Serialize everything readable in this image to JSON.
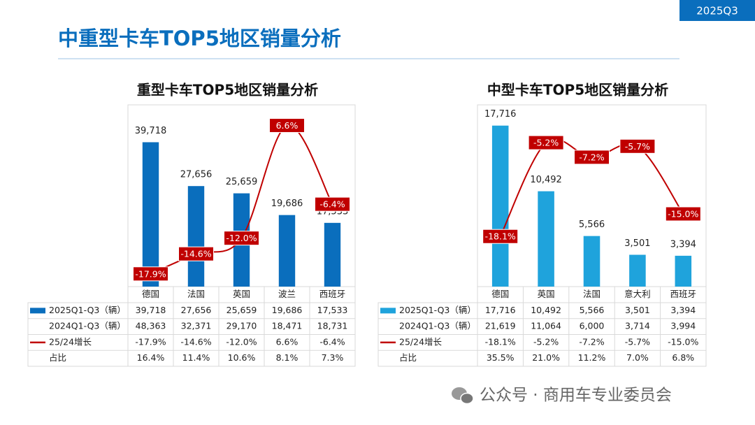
{
  "header": {
    "title": "中重型卡车TOP5地区销量分析",
    "badge": "2025Q3",
    "footer": "公众号 · 商用车专业委员会"
  },
  "chart_data": [
    {
      "type": "bar",
      "title": "重型卡车TOP5地区销量分析",
      "categories": [
        "德国",
        "法国",
        "英国",
        "波兰",
        "西班牙"
      ],
      "ylim": [
        0,
        50000
      ],
      "y2lim": [
        -20,
        10
      ],
      "series": [
        {
          "name": "2025Q1-Q3（辆）",
          "color": "#0a6ebd",
          "values": [
            39718,
            27656,
            25659,
            19686,
            17533
          ],
          "value_labels": [
            "39,718",
            "27,656",
            "25,659",
            "19,686",
            "17,533"
          ]
        },
        {
          "name": "25/24增长",
          "color": "#c00000",
          "axis": "y2",
          "type": "line",
          "values": [
            -17.9,
            -14.6,
            -12.0,
            6.6,
            -6.4
          ],
          "value_labels": [
            "-17.9%",
            "-14.6%",
            "-12.0%",
            "6.6%",
            "-6.4%"
          ]
        }
      ],
      "table_rows": [
        {
          "name": "2024Q1-Q3（辆）",
          "values": [
            48363,
            32371,
            29170,
            18471,
            18731
          ],
          "value_labels": [
            "48,363",
            "32,371",
            "29,170",
            "18,471",
            "18,731"
          ]
        },
        {
          "name": "占比",
          "values": [
            16.4,
            11.4,
            10.6,
            8.1,
            7.3
          ],
          "value_labels": [
            "16.4%",
            "11.4%",
            "10.6%",
            "8.1%",
            "7.3%"
          ]
        }
      ]
    },
    {
      "type": "bar",
      "title": "中型卡车TOP5地区销量分析",
      "categories": [
        "德国",
        "英国",
        "法国",
        "意大利",
        "西班牙"
      ],
      "ylim": [
        0,
        20000
      ],
      "y2lim": [
        -25,
        0
      ],
      "series": [
        {
          "name": "2025Q1-Q3（辆）",
          "color": "#1fa3dc",
          "values": [
            17716,
            10492,
            5566,
            3501,
            3394
          ],
          "value_labels": [
            "17,716",
            "10,492",
            "5,566",
            "3,501",
            "3,394"
          ]
        },
        {
          "name": "25/24增长",
          "color": "#c00000",
          "axis": "y2",
          "type": "line",
          "values": [
            -18.1,
            -5.2,
            -7.2,
            -5.7,
            -15.0
          ],
          "value_labels": [
            "-18.1%",
            "-5.2%",
            "-7.2%",
            "-5.7%",
            "-15.0%"
          ]
        }
      ],
      "table_rows": [
        {
          "name": "2024Q1-Q3（辆）",
          "values": [
            21619,
            11064,
            6000,
            3714,
            3994
          ],
          "value_labels": [
            "21,619",
            "11,064",
            "6,000",
            "3,714",
            "3,994"
          ]
        },
        {
          "name": "占比",
          "values": [
            35.5,
            21.0,
            11.2,
            7.0,
            6.8
          ],
          "value_labels": [
            "35.5%",
            "21.0%",
            "11.2%",
            "7.0%",
            "6.8%"
          ]
        }
      ]
    }
  ]
}
